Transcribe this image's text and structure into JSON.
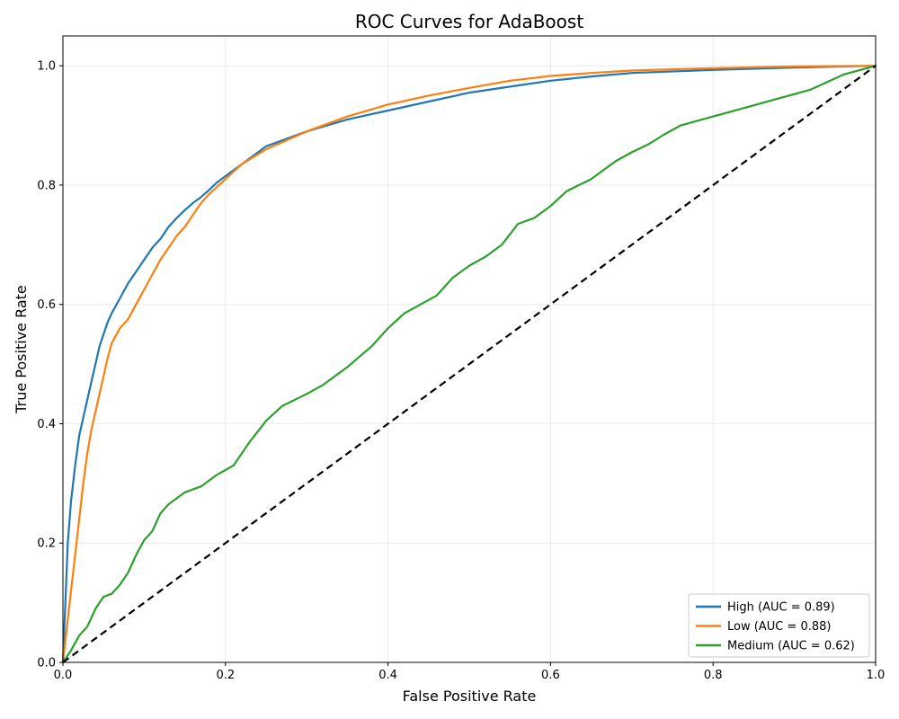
{
  "chart_data": {
    "type": "line",
    "title": "ROC Curves for AdaBoost",
    "xlabel": "False Positive Rate",
    "ylabel": "True Positive Rate",
    "xlim": [
      0.0,
      1.0
    ],
    "ylim": [
      0.0,
      1.05
    ],
    "xticks": [
      "0.0",
      "0.2",
      "0.4",
      "0.6",
      "0.8",
      "1.0"
    ],
    "yticks": [
      "0.0",
      "0.2",
      "0.4",
      "0.6",
      "0.8",
      "1.0"
    ],
    "grid": true,
    "legend_position": "lower-right",
    "series": [
      {
        "name": "High (AUC = 0.89)",
        "color": "#1f77b4",
        "x": [
          0.0,
          0.003,
          0.006,
          0.01,
          0.015,
          0.02,
          0.025,
          0.03,
          0.035,
          0.04,
          0.045,
          0.05,
          0.055,
          0.06,
          0.07,
          0.08,
          0.09,
          0.1,
          0.11,
          0.12,
          0.13,
          0.14,
          0.15,
          0.16,
          0.17,
          0.18,
          0.19,
          0.2,
          0.22,
          0.25,
          0.3,
          0.35,
          0.4,
          0.45,
          0.5,
          0.55,
          0.6,
          0.65,
          0.7,
          0.8,
          0.9,
          1.0
        ],
        "y": [
          0.0,
          0.1,
          0.2,
          0.27,
          0.33,
          0.38,
          0.41,
          0.44,
          0.47,
          0.5,
          0.53,
          0.55,
          0.57,
          0.585,
          0.61,
          0.635,
          0.655,
          0.675,
          0.695,
          0.71,
          0.73,
          0.745,
          0.758,
          0.77,
          0.78,
          0.792,
          0.805,
          0.815,
          0.835,
          0.865,
          0.89,
          0.91,
          0.925,
          0.94,
          0.955,
          0.965,
          0.975,
          0.982,
          0.988,
          0.993,
          0.997,
          1.0
        ]
      },
      {
        "name": "Low (AUC = 0.88)",
        "color": "#ff7f0e",
        "x": [
          0.0,
          0.005,
          0.01,
          0.015,
          0.02,
          0.025,
          0.03,
          0.035,
          0.04,
          0.045,
          0.05,
          0.055,
          0.06,
          0.07,
          0.08,
          0.09,
          0.1,
          0.11,
          0.12,
          0.13,
          0.14,
          0.15,
          0.16,
          0.17,
          0.18,
          0.2,
          0.22,
          0.25,
          0.3,
          0.35,
          0.4,
          0.45,
          0.5,
          0.55,
          0.6,
          0.65,
          0.7,
          0.8,
          0.9,
          1.0
        ],
        "y": [
          0.0,
          0.06,
          0.12,
          0.18,
          0.24,
          0.3,
          0.35,
          0.39,
          0.42,
          0.45,
          0.48,
          0.51,
          0.535,
          0.56,
          0.575,
          0.6,
          0.625,
          0.65,
          0.675,
          0.695,
          0.715,
          0.73,
          0.75,
          0.77,
          0.785,
          0.81,
          0.835,
          0.86,
          0.89,
          0.915,
          0.935,
          0.95,
          0.963,
          0.975,
          0.983,
          0.988,
          0.992,
          0.996,
          0.999,
          1.0
        ]
      },
      {
        "name": "Medium (AUC = 0.62)",
        "color": "#2ca02c",
        "x": [
          0.0,
          0.01,
          0.02,
          0.03,
          0.04,
          0.05,
          0.06,
          0.07,
          0.08,
          0.09,
          0.1,
          0.11,
          0.12,
          0.13,
          0.15,
          0.17,
          0.19,
          0.21,
          0.23,
          0.25,
          0.27,
          0.3,
          0.32,
          0.35,
          0.38,
          0.4,
          0.42,
          0.44,
          0.46,
          0.48,
          0.5,
          0.52,
          0.54,
          0.56,
          0.58,
          0.6,
          0.62,
          0.65,
          0.68,
          0.7,
          0.72,
          0.74,
          0.76,
          0.8,
          0.84,
          0.88,
          0.92,
          0.96,
          1.0
        ],
        "y": [
          0.0,
          0.02,
          0.045,
          0.06,
          0.09,
          0.11,
          0.115,
          0.13,
          0.15,
          0.18,
          0.205,
          0.22,
          0.25,
          0.265,
          0.285,
          0.295,
          0.315,
          0.33,
          0.37,
          0.405,
          0.43,
          0.45,
          0.465,
          0.495,
          0.53,
          0.56,
          0.585,
          0.6,
          0.615,
          0.645,
          0.665,
          0.68,
          0.7,
          0.735,
          0.745,
          0.765,
          0.79,
          0.81,
          0.84,
          0.855,
          0.868,
          0.885,
          0.9,
          0.915,
          0.93,
          0.945,
          0.96,
          0.985,
          1.0
        ]
      },
      {
        "name": "",
        "color": "#000000",
        "dashed": true,
        "x": [
          0.0,
          1.0
        ],
        "y": [
          0.0,
          1.0
        ]
      }
    ]
  }
}
